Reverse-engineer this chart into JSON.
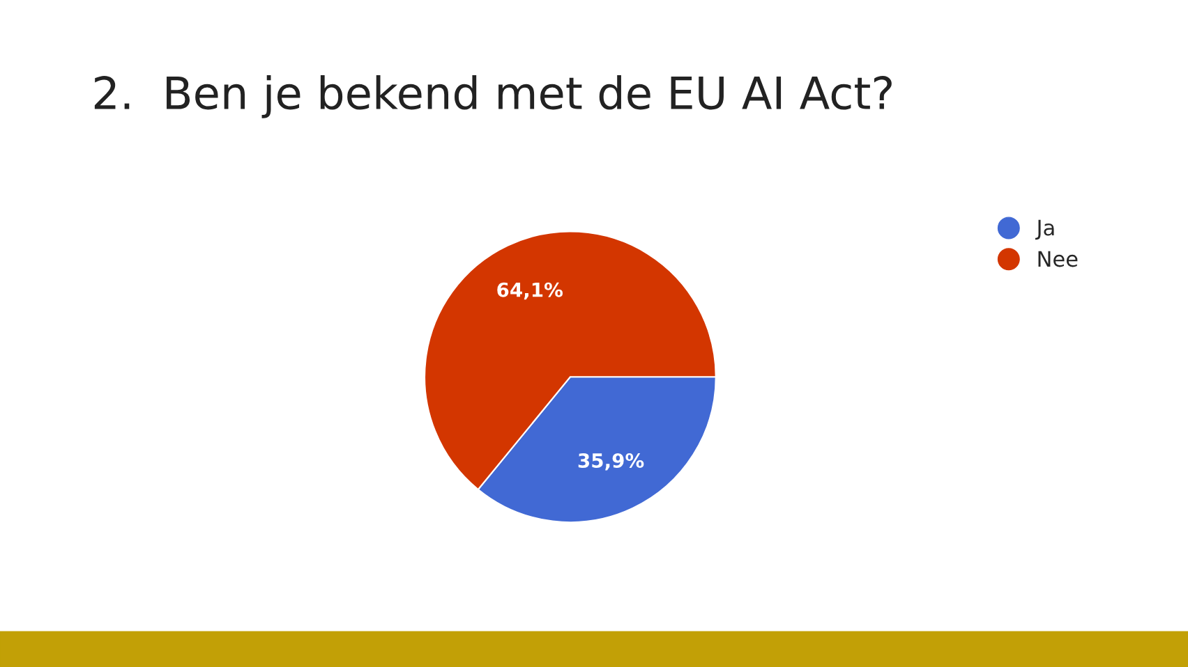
{
  "chart_data": {
    "type": "pie",
    "title": "2.  Ben je bekend met de EU AI Act?",
    "categories": [
      "Ja",
      "Nee"
    ],
    "values": [
      35.9,
      64.1
    ],
    "colors": [
      "#4169d4",
      "#d33600"
    ],
    "value_labels": [
      "35,9%",
      "64,1%"
    ],
    "legend": "top right"
  }
}
